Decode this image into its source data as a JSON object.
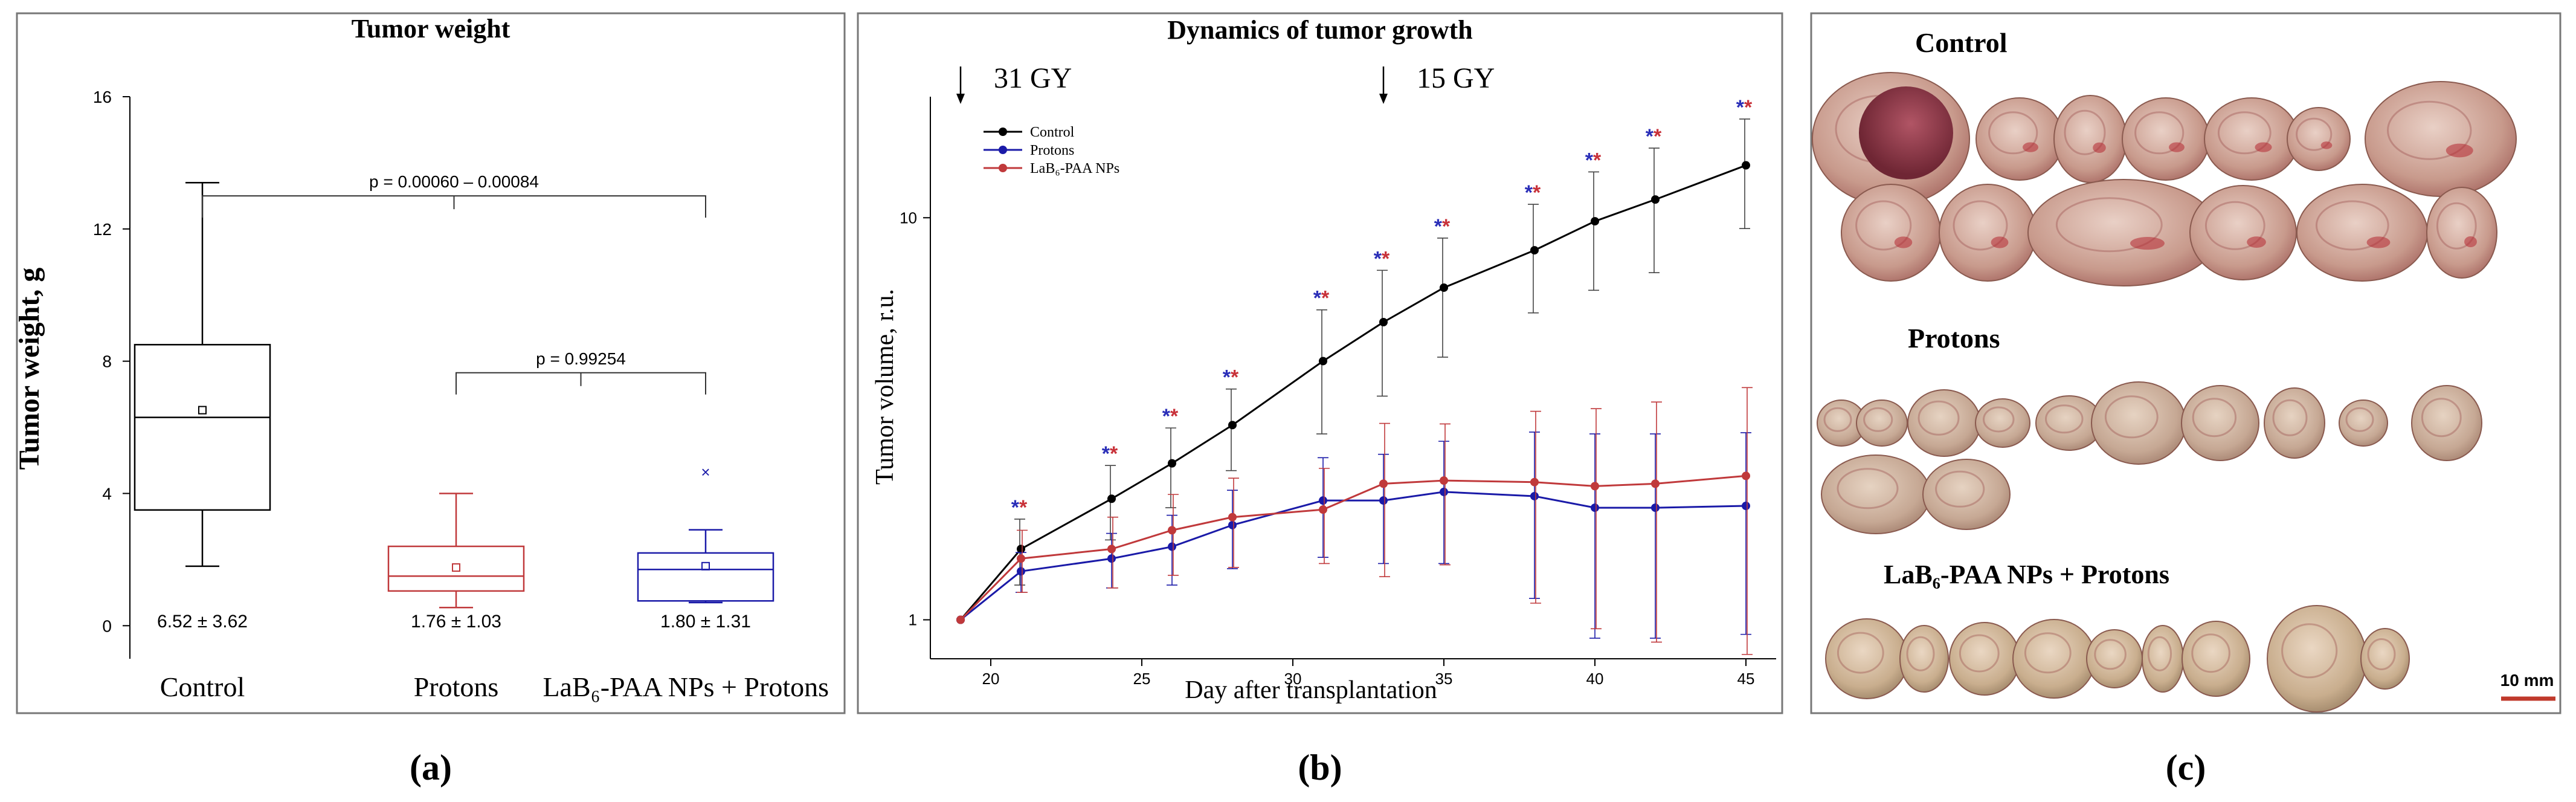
{
  "colors": {
    "control": "#000000",
    "protons": "#1a1aa8",
    "nps": "#c0393b",
    "star_blue": "#2b2fb8",
    "star_red": "#c8323a",
    "scalebar": "#c0392b",
    "frame": "#555555"
  },
  "panel_labels": {
    "a": "(a)",
    "b": "(b)",
    "c": "(c)"
  },
  "chart_data": [
    {
      "type": "box",
      "title": "Tumor weight",
      "ylabel": "Tumor weight, g",
      "xlabel": "",
      "ylim": [
        -1,
        16
      ],
      "yticks": [
        "0",
        "4",
        "8",
        "12",
        "16"
      ],
      "ytick_values": [
        0,
        4,
        8,
        12,
        16
      ],
      "categories": [
        "Control",
        "Protons",
        "LaB₆-PAA NPs + Protons"
      ],
      "boxes": [
        {
          "name": "Control",
          "min": 1.8,
          "q1": 3.5,
          "median": 6.3,
          "q3": 8.5,
          "max": 13.4,
          "mean": 6.52,
          "outliers": [],
          "label": "6.52 ± 3.62"
        },
        {
          "name": "Protons",
          "min": 0.55,
          "q1": 1.05,
          "median": 1.5,
          "q3": 2.4,
          "max": 4.0,
          "mean": 1.76,
          "outliers": [],
          "label": "1.76 ± 1.03"
        },
        {
          "name": "LaB₆-PAA NPs + Protons",
          "min": 0.7,
          "q1": 0.75,
          "median": 1.7,
          "q3": 2.2,
          "max": 2.9,
          "mean": 1.8,
          "outliers": [
            4.65
          ],
          "label": "1.80 ± 1.31"
        }
      ],
      "significance": [
        {
          "label": "p = 0.00060 – 0.00084",
          "from": 0,
          "to": 2,
          "y": 13.0
        },
        {
          "label": "p = 0.99254",
          "from": 1,
          "to": 2,
          "y": 7.65
        }
      ]
    },
    {
      "type": "line",
      "title": "Dynamics of tumor growth",
      "xlabel": "Day after transplantation",
      "ylabel": "Tumor volume, r.u.",
      "yscale": "log",
      "xlim": [
        18,
        46
      ],
      "ylim": [
        0.8,
        20
      ],
      "xticks": [
        "20",
        "25",
        "30",
        "35",
        "40",
        "45"
      ],
      "xtick_values": [
        20,
        25,
        30,
        35,
        40,
        45
      ],
      "yticks": [
        "1",
        "10"
      ],
      "ytick_values": [
        1,
        10
      ],
      "annotations": [
        {
          "text": "31 GY",
          "x": 19
        },
        {
          "text": "15 GY",
          "x": 33
        }
      ],
      "x": [
        19,
        21,
        24,
        26,
        28,
        31,
        33,
        35,
        38,
        40,
        42,
        45
      ],
      "series": [
        {
          "name": "Control",
          "values": [
            1.0,
            1.5,
            2.0,
            2.45,
            3.05,
            4.4,
            5.5,
            6.7,
            8.3,
            9.8,
            11.1,
            13.5
          ],
          "err": [
            0,
            0.28,
            0.42,
            0.55,
            0.7,
            1.5,
            1.9,
            2.2,
            2.5,
            3.2,
            3.8,
            4.1
          ]
        },
        {
          "name": "Protons",
          "values": [
            1.0,
            1.32,
            1.42,
            1.52,
            1.72,
            1.98,
            1.98,
            2.08,
            2.03,
            1.9,
            1.9,
            1.92
          ],
          "err": [
            0,
            0.15,
            0.22,
            0.3,
            0.38,
            0.55,
            0.6,
            0.7,
            0.9,
            1.0,
            1.0,
            1.0
          ]
        },
        {
          "name": "LaB₆-PAA NPs",
          "values": [
            1.0,
            1.42,
            1.5,
            1.67,
            1.8,
            1.88,
            2.18,
            2.22,
            2.2,
            2.15,
            2.18,
            2.28
          ],
          "err": [
            0,
            0.25,
            0.3,
            0.38,
            0.45,
            0.5,
            0.9,
            0.85,
            1.1,
            1.2,
            1.3,
            1.5
          ]
        }
      ],
      "stars_at": [
        21,
        24,
        26,
        28,
        31,
        33,
        35,
        38,
        40,
        42,
        45
      ],
      "star_text": "*"
    }
  ],
  "photo_panel": {
    "groups": [
      {
        "label": "Control",
        "rows": [
          7,
          6
        ]
      },
      {
        "label": "Protons",
        "rows": [
          10,
          2
        ]
      },
      {
        "label": "LaB₆-PAA NPs + Protons",
        "rows": [
          9
        ]
      }
    ],
    "scale_label": "10 mm"
  }
}
